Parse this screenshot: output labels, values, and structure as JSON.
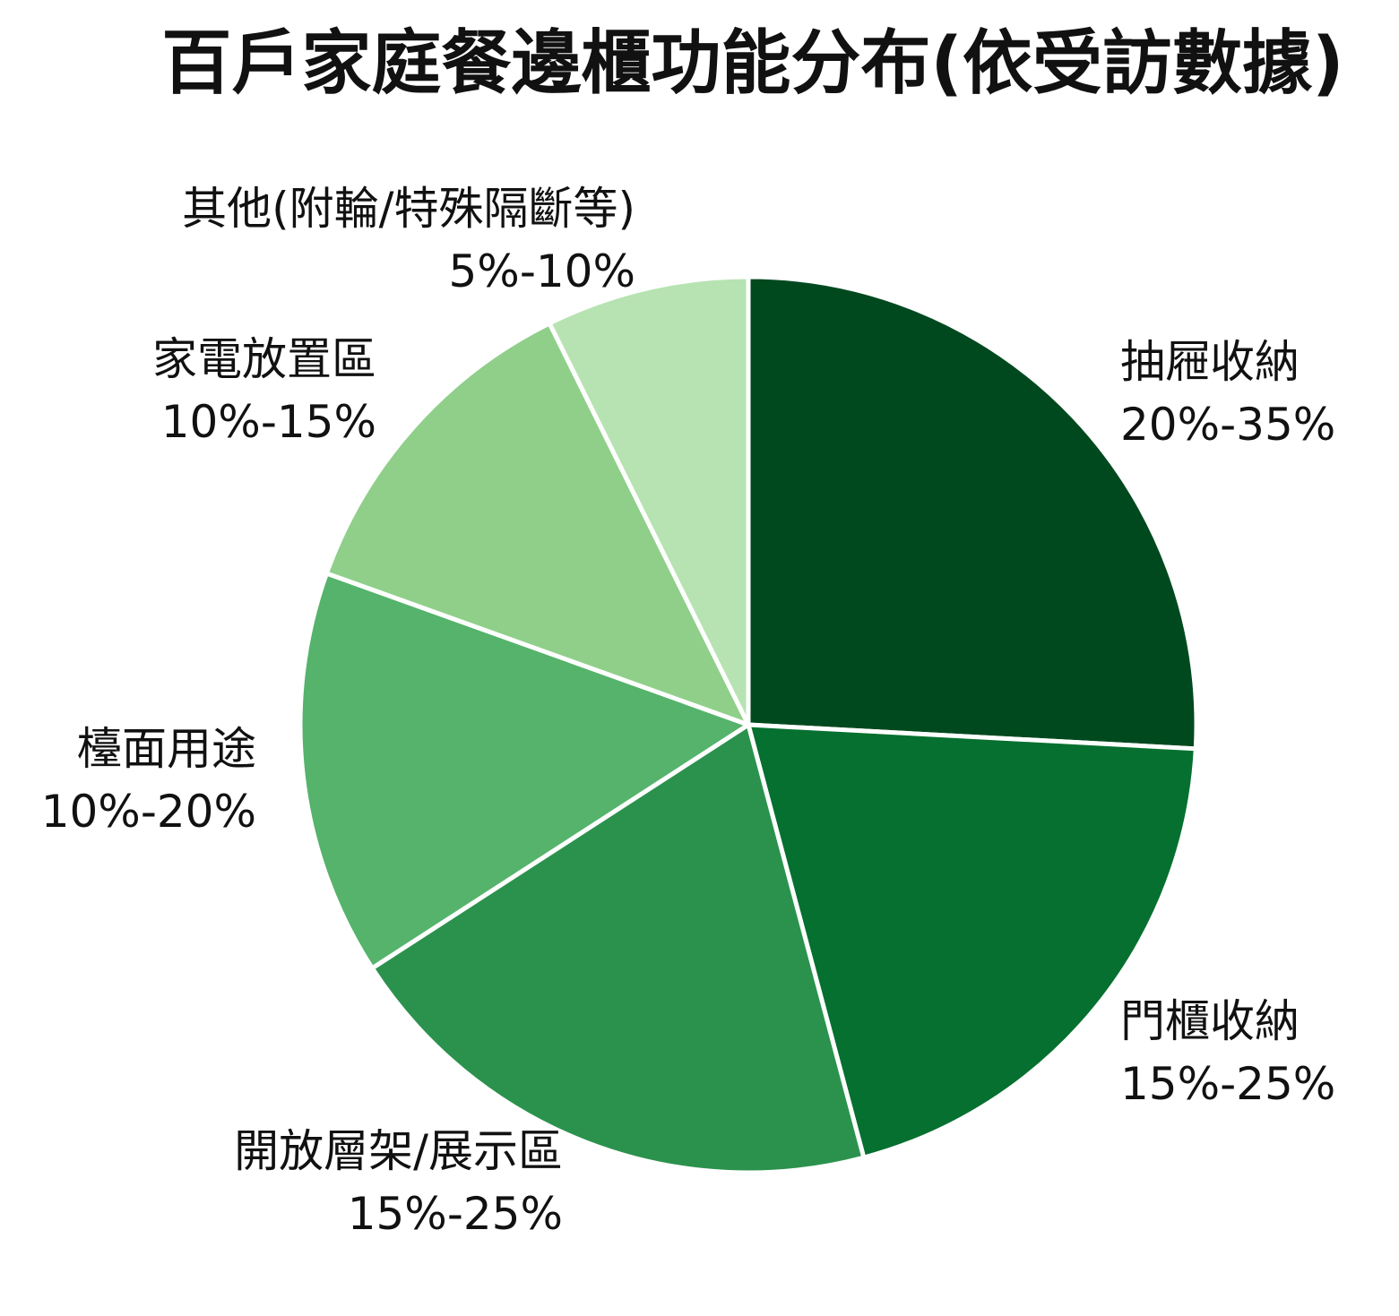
{
  "chart_data": {
    "type": "pie",
    "title": "百戶家庭餐邊櫃功能分布(依受訪數據)",
    "start_angle_deg": 0,
    "direction": "clockwise",
    "stroke_color": "#ffffff",
    "slices": [
      {
        "label": "抽屜收納",
        "range_text": "20%-35%",
        "value": 26.5,
        "color": "#00491f"
      },
      {
        "label": "門櫃收納",
        "range_text": "15%-25%",
        "value": 20.5,
        "color": "#05702f"
      },
      {
        "label": "開放層架/展示區",
        "range_text": "15%-25%",
        "value": 20.5,
        "color": "#2b924d"
      },
      {
        "label": "檯面用途",
        "range_text": "10%-20%",
        "value": 15.0,
        "color": "#55b36b"
      },
      {
        "label": "家電放置區",
        "range_text": "10%-15%",
        "value": 12.5,
        "color": "#8fcf8a"
      },
      {
        "label": "其他(附輪/特殊隔斷等)",
        "range_text": "5%-10%",
        "value": 7.5,
        "color": "#b7e3b2"
      }
    ]
  }
}
